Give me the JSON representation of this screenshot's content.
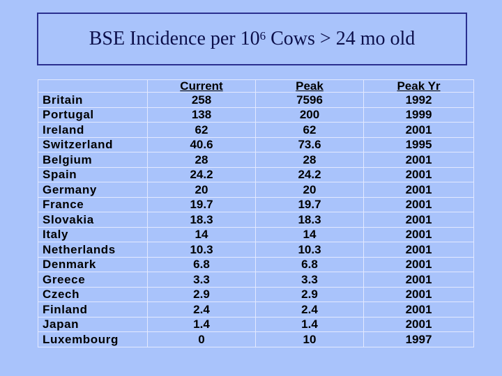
{
  "title": {
    "prefix": "BSE Incidence per 10",
    "superscript": "6",
    "suffix": " Cows > 24 mo old"
  },
  "table": {
    "headers": [
      "",
      "Current",
      "Peak",
      "Peak Yr"
    ],
    "rows": [
      {
        "country": "Britain",
        "current": "258",
        "peak": "7596",
        "peak_yr": "1992"
      },
      {
        "country": "Portugal",
        "current": "138",
        "peak": "200",
        "peak_yr": "1999"
      },
      {
        "country": "Ireland",
        "current": "62",
        "peak": "62",
        "peak_yr": "2001"
      },
      {
        "country": "Switzerland",
        "current": "40.6",
        "peak": "73.6",
        "peak_yr": "1995"
      },
      {
        "country": "Belgium",
        "current": "28",
        "peak": "28",
        "peak_yr": "2001"
      },
      {
        "country": "Spain",
        "current": "24.2",
        "peak": "24.2",
        "peak_yr": "2001"
      },
      {
        "country": "Germany",
        "current": "20",
        "peak": "20",
        "peak_yr": "2001"
      },
      {
        "country": "France",
        "current": "19.7",
        "peak": "19.7",
        "peak_yr": "2001"
      },
      {
        "country": "Slovakia",
        "current": "18.3",
        "peak": "18.3",
        "peak_yr": "2001"
      },
      {
        "country": "Italy",
        "current": "14",
        "peak": "14",
        "peak_yr": "2001"
      },
      {
        "country": "Netherlands",
        "current": "10.3",
        "peak": "10.3",
        "peak_yr": "2001"
      },
      {
        "country": "Denmark",
        "current": "6.8",
        "peak": "6.8",
        "peak_yr": "2001"
      },
      {
        "country": "Greece",
        "current": "3.3",
        "peak": "3.3",
        "peak_yr": "2001"
      },
      {
        "country": "Czech",
        "current": "2.9",
        "peak": "2.9",
        "peak_yr": "2001"
      },
      {
        "country": "Finland",
        "current": "2.4",
        "peak": "2.4",
        "peak_yr": "2001"
      },
      {
        "country": "Japan",
        "current": "1.4",
        "peak": "1.4",
        "peak_yr": "2001"
      },
      {
        "country": "Luxembourg",
        "current": "0",
        "peak": "10",
        "peak_yr": "1997"
      }
    ]
  }
}
